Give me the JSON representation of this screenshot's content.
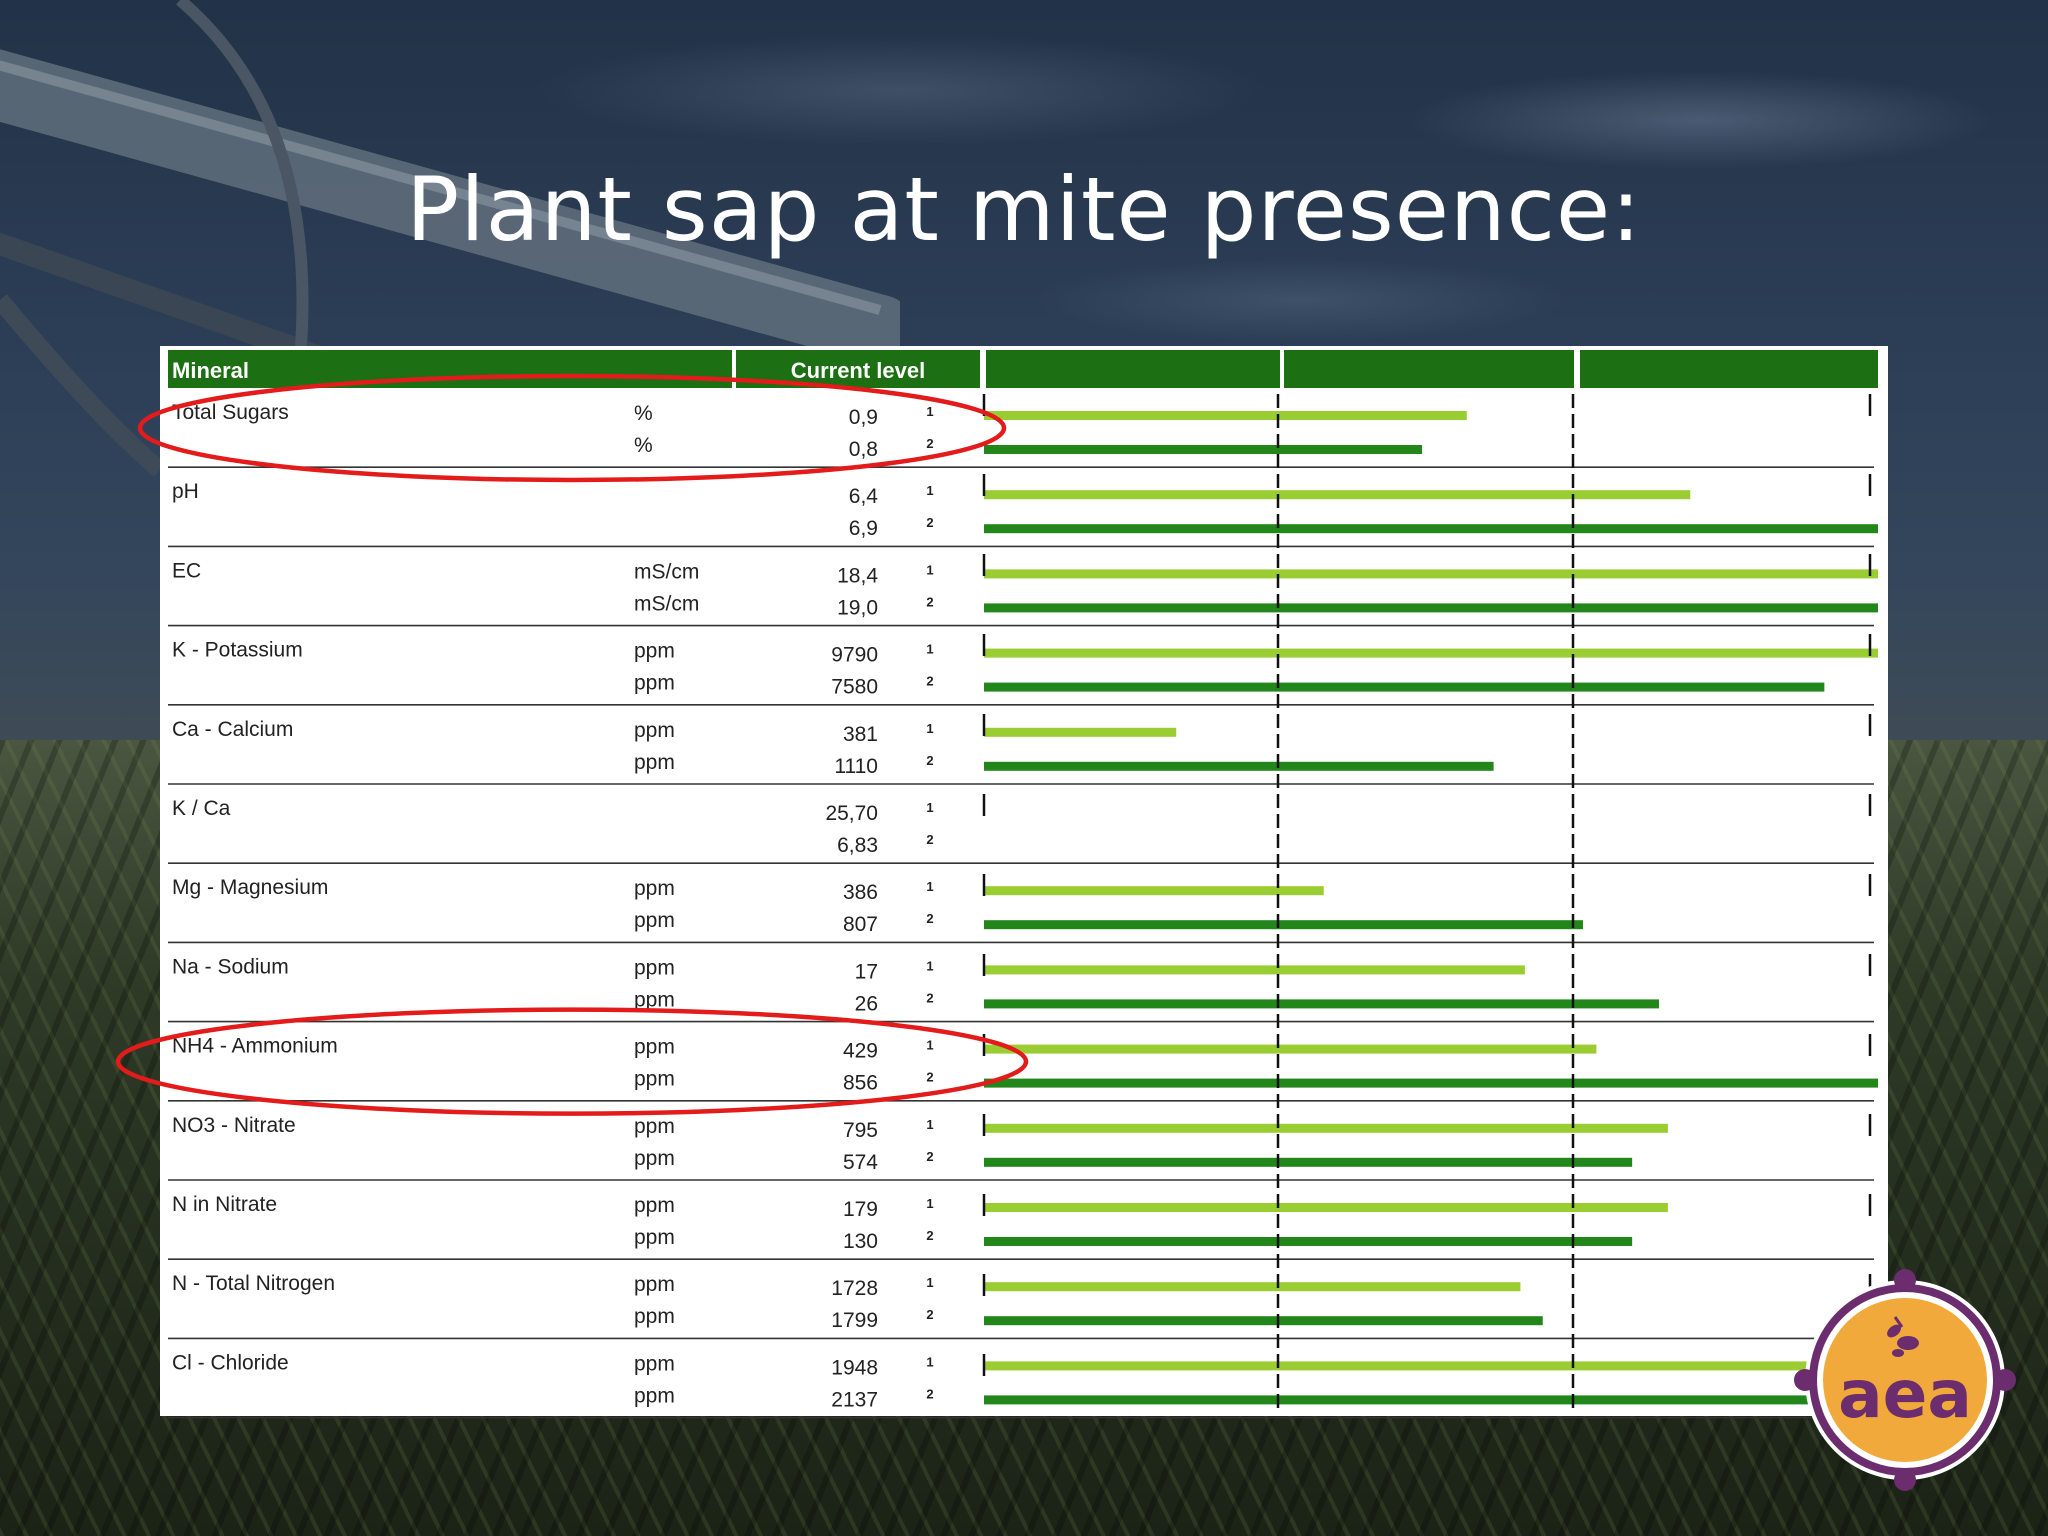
{
  "title": "Plant sap at mite presence:",
  "table": {
    "headers": {
      "mineral": "Mineral",
      "current": "Current level"
    }
  },
  "logo": {
    "text": "aea",
    "icon": "bee-icon"
  },
  "colors": {
    "header": "#1c6f12",
    "bar_1": "#9acd32",
    "bar_2": "#23861a",
    "highlight": "#e31b1b"
  },
  "chart_data": {
    "type": "bar",
    "orientation": "horizontal",
    "sample_markers": [
      "1",
      "2"
    ],
    "highlighted_rows": [
      "Total Sugars",
      "NH4 - Ammonium"
    ],
    "rows": [
      {
        "name": "Total Sugars",
        "units": [
          "%",
          "%"
        ],
        "labels": [
          "0,9",
          "0,8"
        ],
        "levels": [
          0.54,
          0.49
        ]
      },
      {
        "name": "pH",
        "units": [
          "",
          ""
        ],
        "labels": [
          "6,4",
          "6,9"
        ],
        "levels": [
          0.79,
          1.0
        ]
      },
      {
        "name": "EC",
        "units": [
          "mS/cm",
          "mS/cm"
        ],
        "labels": [
          "18,4",
          "19,0"
        ],
        "levels": [
          1.0,
          1.0
        ]
      },
      {
        "name": "K - Potassium",
        "units": [
          "ppm",
          "ppm"
        ],
        "labels": [
          "9790",
          "7580"
        ],
        "levels": [
          1.0,
          0.94
        ]
      },
      {
        "name": "Ca - Calcium",
        "units": [
          "ppm",
          "ppm"
        ],
        "labels": [
          "381",
          "1110"
        ],
        "levels": [
          0.215,
          0.57
        ]
      },
      {
        "name": "K / Ca",
        "units": [
          "",
          ""
        ],
        "labels": [
          "25,70",
          "6,83"
        ],
        "levels": [
          0,
          0
        ]
      },
      {
        "name": "Mg - Magnesium",
        "units": [
          "ppm",
          "ppm"
        ],
        "labels": [
          "386",
          "807"
        ],
        "levels": [
          0.38,
          0.67
        ]
      },
      {
        "name": "Na - Sodium",
        "units": [
          "ppm",
          "ppm"
        ],
        "labels": [
          "17",
          "26"
        ],
        "levels": [
          0.605,
          0.755
        ]
      },
      {
        "name": "NH4 - Ammonium",
        "units": [
          "ppm",
          "ppm"
        ],
        "labels": [
          "429",
          "856"
        ],
        "levels": [
          0.685,
          1.0
        ]
      },
      {
        "name": "NO3 - Nitrate",
        "units": [
          "ppm",
          "ppm"
        ],
        "labels": [
          "795",
          "574"
        ],
        "levels": [
          0.765,
          0.725
        ]
      },
      {
        "name": "N in Nitrate",
        "units": [
          "ppm",
          "ppm"
        ],
        "labels": [
          "179",
          "130"
        ],
        "levels": [
          0.765,
          0.725
        ]
      },
      {
        "name": "N - Total Nitrogen",
        "units": [
          "ppm",
          "ppm"
        ],
        "labels": [
          "1728",
          "1799"
        ],
        "levels": [
          0.6,
          0.625
        ]
      },
      {
        "name": "Cl - Chloride",
        "units": [
          "ppm",
          "ppm"
        ],
        "labels": [
          "1948",
          "2137"
        ],
        "levels": [
          0.98,
          0.98
        ]
      }
    ]
  }
}
